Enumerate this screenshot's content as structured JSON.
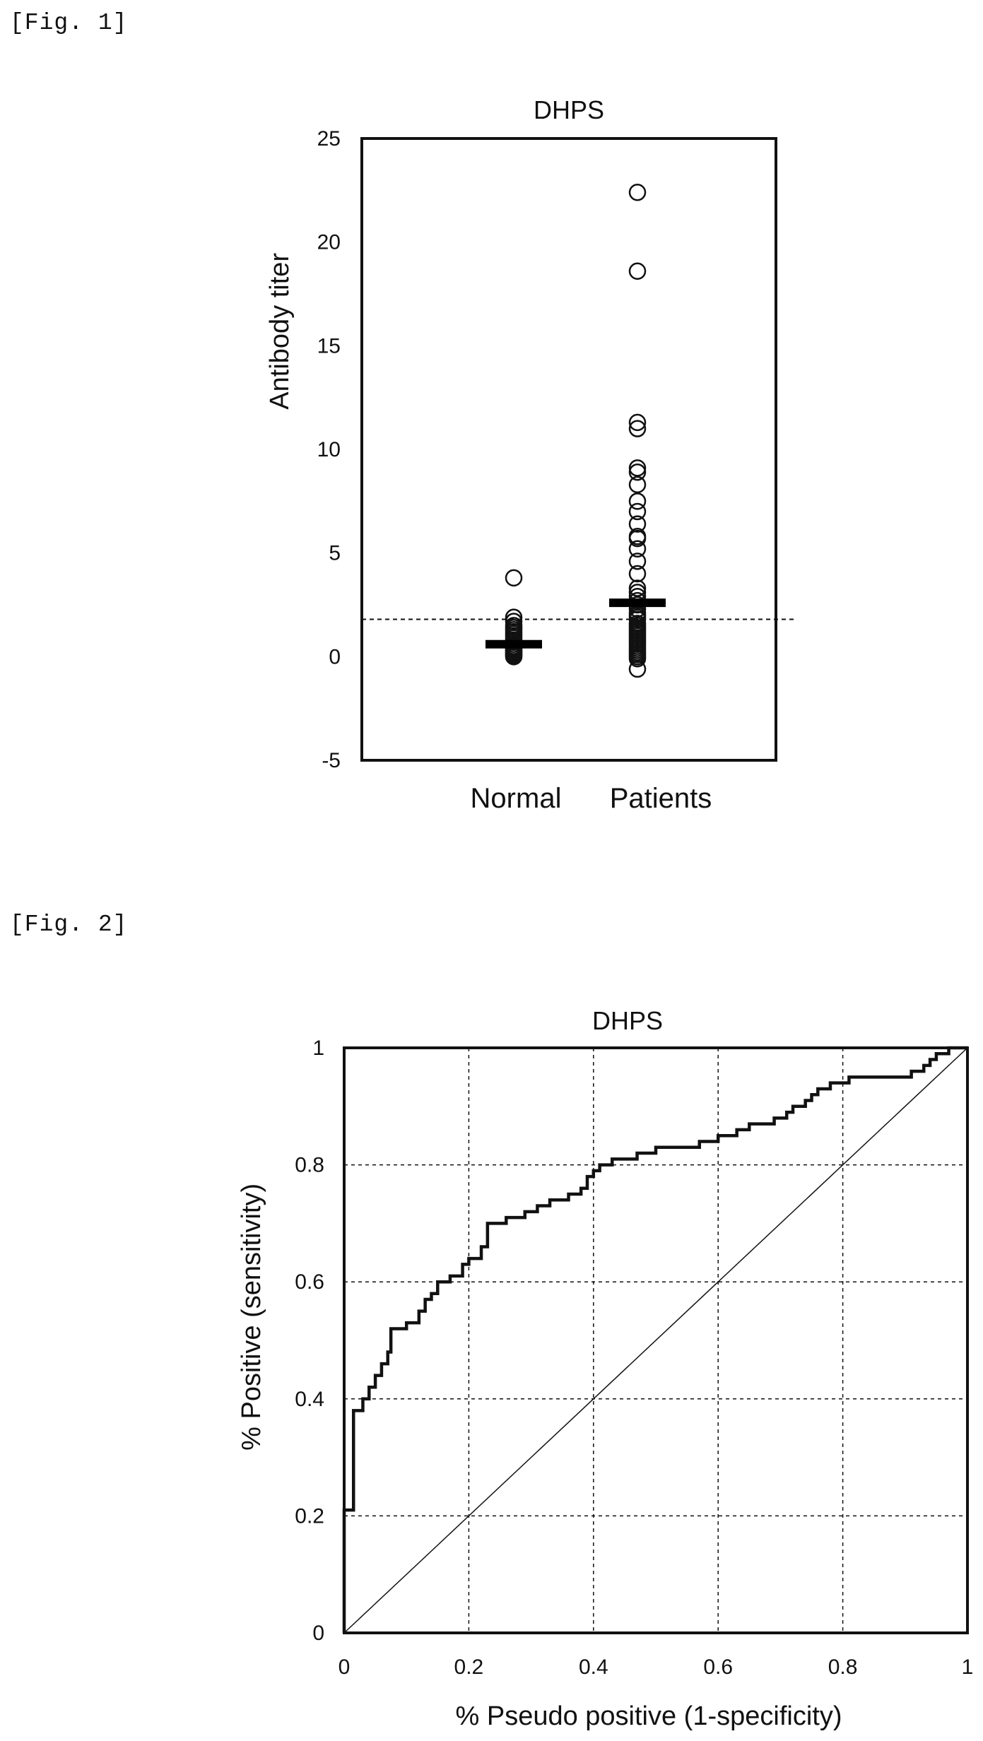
{
  "figures": {
    "fig1_label": "[Fig. 1]",
    "fig2_label": "[Fig. 2]"
  },
  "chart_data": [
    {
      "type": "scatter",
      "title": "DHPS",
      "xlabel": "",
      "ylabel": "Antibody titer",
      "categories": [
        "Normal",
        "Patients"
      ],
      "ylim": [
        -5,
        25
      ],
      "yticks": [
        25,
        20,
        15,
        10,
        5,
        0,
        -5
      ],
      "threshold": 1.8,
      "series": [
        {
          "category": "Normal",
          "values": [
            3.8,
            1.9,
            1.7,
            1.5,
            1.4,
            1.3,
            1.2,
            1.1,
            1.0,
            0.9,
            0.8,
            0.7,
            0.6,
            0.5,
            0.45,
            0.4,
            0.35,
            0.3,
            0.25,
            0.2,
            0.15,
            0.1,
            0.05,
            0.0
          ],
          "mean": 0.6
        },
        {
          "category": "Patients",
          "values": [
            22.4,
            18.6,
            11.3,
            11.0,
            9.1,
            8.9,
            8.3,
            7.5,
            7.0,
            6.4,
            5.8,
            5.7,
            5.2,
            4.6,
            4.0,
            3.3,
            3.1,
            2.9,
            2.7,
            2.5,
            2.3,
            2.1,
            2.0,
            1.9,
            1.8,
            1.6,
            1.5,
            1.4,
            1.3,
            1.2,
            1.1,
            1.0,
            0.9,
            0.8,
            0.7,
            0.6,
            0.5,
            0.4,
            0.3,
            0.2,
            0.1,
            0.0,
            -0.1,
            -0.6
          ],
          "mean": 2.6
        }
      ]
    },
    {
      "type": "line",
      "title": "DHPS",
      "xlabel": "% Pseudo positive (1-specificity)",
      "ylabel": "% Positive (sensitivity)",
      "xlim": [
        0,
        1
      ],
      "ylim": [
        0,
        1
      ],
      "xticks": [
        "0",
        "0.2",
        "0.4",
        "0.6",
        "0.8",
        "1"
      ],
      "yticks": [
        "0",
        "0.2",
        "0.4",
        "0.6",
        "0.8",
        "1"
      ],
      "grid": true,
      "series": [
        {
          "name": "",
          "points": [
            [
              0,
              0
            ],
            [
              0,
              0.21
            ],
            [
              0.015,
              0.21
            ],
            [
              0.015,
              0.38
            ],
            [
              0.03,
              0.38
            ],
            [
              0.03,
              0.4
            ],
            [
              0.04,
              0.4
            ],
            [
              0.04,
              0.42
            ],
            [
              0.05,
              0.42
            ],
            [
              0.05,
              0.44
            ],
            [
              0.06,
              0.44
            ],
            [
              0.06,
              0.46
            ],
            [
              0.07,
              0.46
            ],
            [
              0.07,
              0.48
            ],
            [
              0.075,
              0.48
            ],
            [
              0.075,
              0.52
            ],
            [
              0.1,
              0.52
            ],
            [
              0.1,
              0.53
            ],
            [
              0.12,
              0.53
            ],
            [
              0.12,
              0.55
            ],
            [
              0.13,
              0.55
            ],
            [
              0.13,
              0.57
            ],
            [
              0.14,
              0.57
            ],
            [
              0.14,
              0.58
            ],
            [
              0.15,
              0.58
            ],
            [
              0.15,
              0.6
            ],
            [
              0.17,
              0.6
            ],
            [
              0.17,
              0.61
            ],
            [
              0.19,
              0.61
            ],
            [
              0.19,
              0.63
            ],
            [
              0.2,
              0.63
            ],
            [
              0.2,
              0.64
            ],
            [
              0.22,
              0.64
            ],
            [
              0.22,
              0.66
            ],
            [
              0.23,
              0.66
            ],
            [
              0.23,
              0.7
            ],
            [
              0.26,
              0.7
            ],
            [
              0.26,
              0.71
            ],
            [
              0.29,
              0.71
            ],
            [
              0.29,
              0.72
            ],
            [
              0.31,
              0.72
            ],
            [
              0.31,
              0.73
            ],
            [
              0.33,
              0.73
            ],
            [
              0.33,
              0.74
            ],
            [
              0.36,
              0.74
            ],
            [
              0.36,
              0.75
            ],
            [
              0.38,
              0.75
            ],
            [
              0.38,
              0.76
            ],
            [
              0.39,
              0.76
            ],
            [
              0.39,
              0.78
            ],
            [
              0.4,
              0.78
            ],
            [
              0.4,
              0.79
            ],
            [
              0.41,
              0.79
            ],
            [
              0.41,
              0.8
            ],
            [
              0.43,
              0.8
            ],
            [
              0.43,
              0.81
            ],
            [
              0.47,
              0.81
            ],
            [
              0.47,
              0.82
            ],
            [
              0.5,
              0.82
            ],
            [
              0.5,
              0.83
            ],
            [
              0.57,
              0.83
            ],
            [
              0.57,
              0.84
            ],
            [
              0.6,
              0.84
            ],
            [
              0.6,
              0.85
            ],
            [
              0.63,
              0.85
            ],
            [
              0.63,
              0.86
            ],
            [
              0.65,
              0.86
            ],
            [
              0.65,
              0.87
            ],
            [
              0.69,
              0.87
            ],
            [
              0.69,
              0.88
            ],
            [
              0.71,
              0.88
            ],
            [
              0.71,
              0.89
            ],
            [
              0.72,
              0.89
            ],
            [
              0.72,
              0.9
            ],
            [
              0.74,
              0.9
            ],
            [
              0.74,
              0.91
            ],
            [
              0.75,
              0.91
            ],
            [
              0.75,
              0.92
            ],
            [
              0.76,
              0.92
            ],
            [
              0.76,
              0.93
            ],
            [
              0.78,
              0.93
            ],
            [
              0.78,
              0.94
            ],
            [
              0.81,
              0.94
            ],
            [
              0.81,
              0.95
            ],
            [
              0.91,
              0.95
            ],
            [
              0.91,
              0.96
            ],
            [
              0.93,
              0.96
            ],
            [
              0.93,
              0.97
            ],
            [
              0.94,
              0.97
            ],
            [
              0.94,
              0.98
            ],
            [
              0.95,
              0.98
            ],
            [
              0.95,
              0.99
            ],
            [
              0.97,
              0.99
            ],
            [
              0.97,
              1.0
            ],
            [
              1.0,
              1.0
            ]
          ]
        },
        {
          "name": "",
          "points": [
            [
              0,
              0
            ],
            [
              1,
              1
            ]
          ]
        }
      ]
    }
  ]
}
